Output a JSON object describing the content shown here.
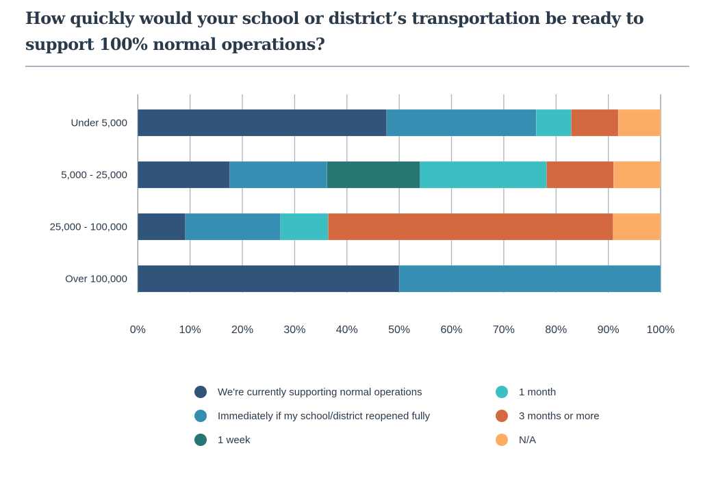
{
  "chart_data": {
    "type": "bar",
    "orientation": "horizontal",
    "stacked": true,
    "title": "How quickly would your school or district’s transportation be ready to support 100% normal operations?",
    "categories": [
      "Under 5,000",
      "5,000 - 25,000",
      "25,000 - 100,000",
      "Over 100,000"
    ],
    "series": [
      {
        "name": "We're currently supporting normal operations",
        "color": "#31557a",
        "values": [
          47.6,
          17.6,
          9.1,
          50.0
        ]
      },
      {
        "name": "Immediately if my school/district reopened fully",
        "color": "#368eb3",
        "values": [
          28.6,
          18.6,
          18.2,
          50.0
        ]
      },
      {
        "name": "1 week",
        "color": "#267674",
        "values": [
          0,
          17.8,
          0,
          0
        ]
      },
      {
        "name": "1 month",
        "color": "#3bbfc3",
        "values": [
          6.7,
          24.2,
          9.1,
          0
        ]
      },
      {
        "name": "3 months or more",
        "color": "#d4693f",
        "values": [
          9.0,
          12.8,
          54.5,
          0
        ]
      },
      {
        "name": "N/A",
        "color": "#fbad66",
        "values": [
          8.1,
          9.0,
          9.1,
          0
        ]
      }
    ],
    "xlim": [
      0,
      100
    ],
    "xticks": [
      "0%",
      "10%",
      "20%",
      "30%",
      "40%",
      "50%",
      "60%",
      "70%",
      "80%",
      "90%",
      "100%"
    ],
    "grid": true,
    "legend_position": "bottom"
  }
}
